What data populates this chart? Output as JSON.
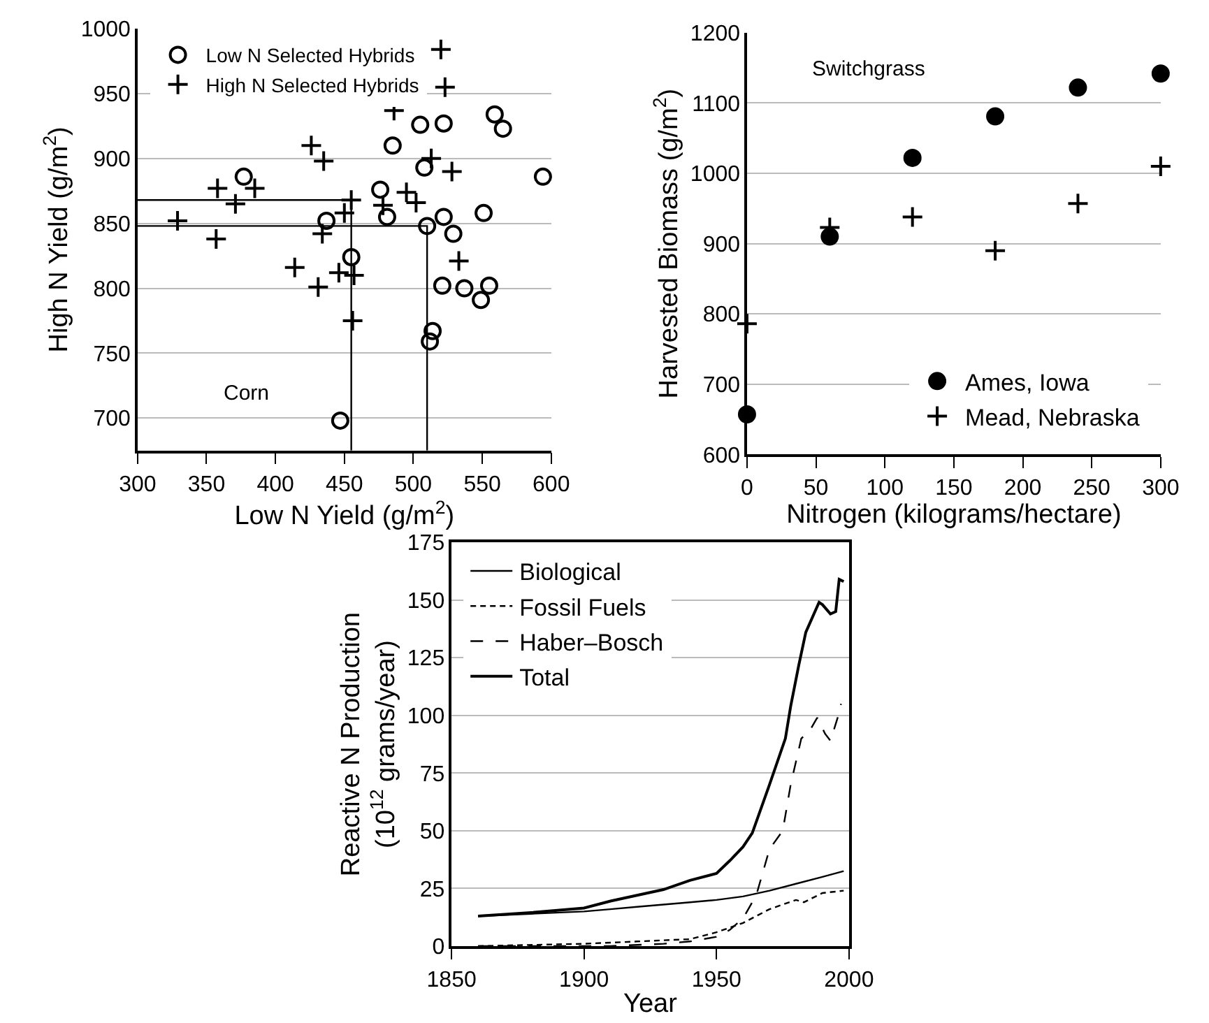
{
  "chart_data": [
    {
      "type": "scatter",
      "xlabel": "Low N Yield (g/m$^{2}$)",
      "ylabel": "High N Yield (g/m$^{2}$)",
      "annotations": [
        "Corn"
      ],
      "xlim": [
        300,
        600
      ],
      "xticks": [
        300,
        350,
        400,
        450,
        500,
        550,
        600
      ],
      "ylim": [
        675,
        1000
      ],
      "yticks": [
        700,
        750,
        800,
        850,
        900,
        950,
        1000
      ],
      "grid": "y",
      "legend": "top left",
      "series": [
        {
          "name": "Low N Selected Hybrids",
          "color": "#000000",
          "marker": "circle-open",
          "x": [
            377,
            437,
            455,
            447,
            476,
            481,
            485,
            505,
            522,
            508,
            510,
            522,
            529,
            521,
            537,
            549,
            555,
            551,
            559,
            565,
            594,
            514,
            512
          ],
          "values": [
            886,
            852,
            824,
            698,
            876,
            855,
            910,
            926,
            927,
            893,
            848,
            855,
            842,
            802,
            800,
            791,
            802,
            858,
            934,
            923,
            886,
            767,
            759
          ]
        },
        {
          "name": "High N Selected Hybrids",
          "color": "#000000",
          "marker": "cross",
          "x": [
            520,
            523,
            486,
            426,
            435,
            358,
            385,
            371,
            329,
            357,
            434,
            414,
            431,
            446,
            457,
            456,
            450,
            455,
            495,
            502,
            513,
            528,
            533,
            478
          ],
          "values": [
            984,
            955,
            937,
            910,
            898,
            877,
            877,
            865,
            852,
            838,
            842,
            816,
            801,
            812,
            810,
            775,
            858,
            868,
            874,
            866,
            900,
            890,
            821,
            864
          ]
        },
        {
          "type": "line",
          "color": "#000000",
          "marker": "none",
          "x": [
            300,
            455,
            455
          ],
          "values": [
            868,
            868,
            675
          ]
        },
        {
          "type": "line",
          "color": "#000000",
          "marker": "none",
          "x": [
            300,
            510,
            510
          ],
          "values": [
            848,
            848,
            675
          ]
        }
      ]
    },
    {
      "type": "scatter",
      "xlabel": "Nitrogen (kilograms/hectare)",
      "ylabel": "Harvested Biomass (g/m$^{2}$)",
      "annotations": [
        "Switchgrass"
      ],
      "xlim": [
        0,
        300
      ],
      "xticks": [
        0,
        50,
        100,
        150,
        200,
        250,
        300
      ],
      "ylim": [
        600,
        1200
      ],
      "yticks": [
        600,
        700,
        800,
        900,
        1000,
        1100,
        1200
      ],
      "grid": "y",
      "legend": "bottom right",
      "x": [
        0,
        60,
        120,
        180,
        240,
        300
      ],
      "series": [
        {
          "name": "Ames, Iowa",
          "color": "#000000",
          "marker": "circle",
          "values": [
            657,
            910,
            1022,
            1081,
            1122,
            1142
          ]
        },
        {
          "name": "Mead, Nebraska",
          "color": "#000000",
          "marker": "cross",
          "values": [
            786,
            923,
            938,
            890,
            957,
            1010
          ]
        }
      ]
    },
    {
      "type": "line",
      "xlabel": "Year",
      "ylabel": "Reactive N Production\n(10$^{12}$ grams/year)",
      "xlim": [
        1850,
        2000
      ],
      "xticks": [
        1850,
        1900,
        1950,
        2000
      ],
      "ylim": [
        0,
        175
      ],
      "yticks": [
        0,
        25,
        50,
        75,
        100,
        125,
        150,
        175
      ],
      "grid": "y",
      "legend": "top left",
      "marker": "none",
      "series": [
        {
          "name": "Biological",
          "color": "#000000",
          "line_style": "solid",
          "x": [
            1860,
            1880,
            1900,
            1910,
            1920,
            1930,
            1940,
            1950,
            1960,
            1970,
            1980,
            1990,
            1998
          ],
          "values": [
            13,
            14,
            15,
            16,
            17,
            18,
            19,
            20,
            21.5,
            24,
            27,
            30,
            32.5
          ]
        },
        {
          "name": "Fossil Fuels",
          "color": "#000000",
          "line_style": "dotted",
          "x": [
            1860,
            1900,
            1920,
            1940,
            1950,
            1960,
            1970,
            1980,
            1983,
            1990,
            1998
          ],
          "values": [
            0,
            1,
            2,
            3,
            6,
            10,
            16,
            20,
            19,
            23,
            24
          ]
        },
        {
          "name": "Haber–Bosch",
          "color": "#000000",
          "line_style": "dashed",
          "x": [
            1860,
            1910,
            1930,
            1940,
            1950,
            1955,
            1960,
            1965,
            1970,
            1975,
            1978,
            1982,
            1985,
            1988,
            1991,
            1993,
            1996,
            1997
          ],
          "values": [
            0,
            0,
            1,
            2,
            4,
            7,
            12,
            22,
            42,
            50,
            70,
            90,
            93,
            99,
            92,
            89,
            100,
            105
          ]
        },
        {
          "name": "Total",
          "color": "#000000",
          "line_style": "solid",
          "x": [
            1860,
            1880,
            1900,
            1910,
            1920,
            1930,
            1940,
            1950,
            1955,
            1960,
            1963.5,
            1970,
            1976,
            1978,
            1981,
            1983.7,
            1988.7,
            1990,
            1993,
            1995,
            1996.3,
            1998
          ],
          "values": [
            13,
            14.5,
            16.5,
            19.5,
            22,
            24.5,
            28.5,
            31.5,
            37,
            43,
            49,
            70,
            90,
            104,
            121.5,
            136,
            149,
            148,
            144,
            145,
            159,
            158
          ]
        }
      ]
    }
  ]
}
